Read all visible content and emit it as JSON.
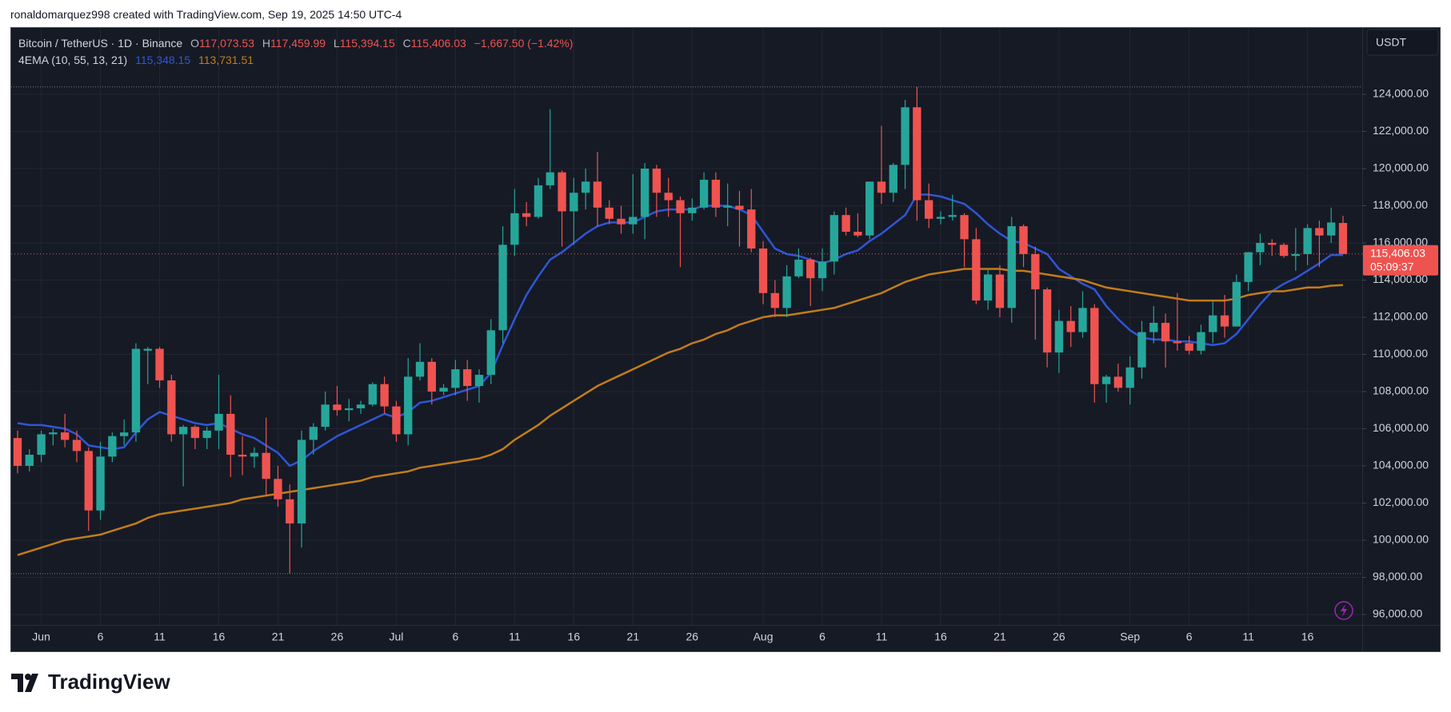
{
  "header": {
    "attribution": "ronaldomarquez998 created with TradingView.com, Sep 19, 2025 14:50 UTC-4",
    "logo": "TradingView"
  },
  "chart_data": {
    "type": "candlestick",
    "symbol": "Bitcoin / TetherUS · 1D · Binance",
    "ohlc_legend": [
      {
        "label": "O",
        "value": "117,073.53"
      },
      {
        "label": "H",
        "value": "117,459.99"
      },
      {
        "label": "L",
        "value": "115,394.15"
      },
      {
        "label": "C",
        "value": "115,406.03"
      }
    ],
    "change": "−1,667.50 (−1.42%)",
    "currency": "USDT",
    "close_label": "115,406.03",
    "countdown": "05:09:37",
    "colors": {
      "up": "#26a69a",
      "down": "#ef5350"
    },
    "grid": true,
    "ylim": [
      95440,
      127570
    ],
    "yticks": [
      {
        "value": 96000,
        "label": "96,000.00"
      },
      {
        "value": 98000,
        "label": "98,000.00"
      },
      {
        "value": 100000,
        "label": "100,000.00"
      },
      {
        "value": 102000,
        "label": "102,000.00"
      },
      {
        "value": 104000,
        "label": "104,000.00"
      },
      {
        "value": 106000,
        "label": "106,000.00"
      },
      {
        "value": 108000,
        "label": "108,000.00"
      },
      {
        "value": 110000,
        "label": "110,000.00"
      },
      {
        "value": 112000,
        "label": "112,000.00"
      },
      {
        "value": 114000,
        "label": "114,000.00"
      },
      {
        "value": 116000,
        "label": "116,000.00"
      },
      {
        "value": 118000,
        "label": "118,000.00"
      },
      {
        "value": 120000,
        "label": "120,000.00"
      },
      {
        "value": 122000,
        "label": "122,000.00"
      },
      {
        "value": 124000,
        "label": "124,000.00"
      }
    ],
    "categories": [
      null,
      null,
      "Jun",
      null,
      null,
      null,
      null,
      "6",
      null,
      null,
      null,
      null,
      "11",
      null,
      null,
      null,
      null,
      "16",
      null,
      null,
      null,
      null,
      "21",
      null,
      null,
      null,
      null,
      "26",
      null,
      null,
      null,
      null,
      "Jul",
      null,
      null,
      null,
      null,
      "6",
      null,
      null,
      null,
      null,
      "11",
      null,
      null,
      null,
      null,
      "16",
      null,
      null,
      null,
      null,
      "21",
      null,
      null,
      null,
      null,
      "26",
      null,
      null,
      null,
      null,
      null,
      "Aug",
      null,
      null,
      null,
      null,
      "6",
      null,
      null,
      null,
      null,
      "11",
      null,
      null,
      null,
      null,
      "16",
      null,
      null,
      null,
      null,
      "21",
      null,
      null,
      null,
      null,
      "26",
      null,
      null,
      null,
      null,
      null,
      "Sep",
      null,
      null,
      null,
      null,
      "6",
      null,
      null,
      null,
      null,
      "11",
      null,
      null,
      null,
      null,
      "16",
      null,
      null,
      null
    ],
    "open": [
      105500,
      104000,
      104600,
      105700,
      105800,
      105400,
      104800,
      101600,
      104500,
      105600,
      105800,
      110200,
      110300,
      108600,
      105700,
      106100,
      105500,
      105900,
      106800,
      104600,
      104500,
      104700,
      103300,
      102200,
      100900,
      105400,
      106100,
      107300,
      107000,
      107100,
      107300,
      108400,
      107200,
      105700,
      108800,
      109600,
      108000,
      108200,
      109200,
      108300,
      108900,
      111300,
      115900,
      117600,
      117400,
      119100,
      119800,
      117700,
      118700,
      119300,
      117900,
      117300,
      117000,
      117400,
      120000,
      118700,
      118300,
      117600,
      117900,
      119400,
      117900,
      118000,
      117800,
      115700,
      113300,
      112500,
      114200,
      115100,
      114100,
      115000,
      117500,
      116600,
      116400,
      119300,
      118700,
      120200,
      123300,
      118300,
      117300,
      117400,
      117500,
      116200,
      112900,
      114300,
      112500,
      116900,
      115400,
      113500,
      110100,
      111800,
      111200,
      112500,
      108400,
      108800,
      108200,
      109300,
      111200,
      111700,
      110700,
      110600,
      110200,
      111200,
      112100,
      111500,
      113900,
      115500,
      116000,
      115900,
      115300,
      115400,
      116800,
      116400,
      117073.53
    ],
    "high": [
      105900,
      104900,
      105900,
      106000,
      106800,
      105900,
      105000,
      105300,
      105800,
      106500,
      110600,
      110400,
      110400,
      108900,
      106200,
      106200,
      106100,
      108900,
      107800,
      105600,
      105000,
      106600,
      104000,
      103000,
      105900,
      106300,
      108000,
      108300,
      107600,
      107500,
      108500,
      108800,
      107500,
      109800,
      110600,
      109800,
      108400,
      109700,
      109700,
      109200,
      111900,
      116900,
      118900,
      118200,
      119500,
      123200,
      119900,
      119500,
      120000,
      120900,
      118300,
      118000,
      119700,
      120300,
      120200,
      119500,
      118500,
      118400,
      119800,
      119800,
      119200,
      118800,
      118900,
      116100,
      114000,
      114800,
      115700,
      115200,
      115700,
      117700,
      117900,
      117600,
      119300,
      122300,
      120300,
      123700,
      124400,
      119200,
      117700,
      118600,
      117600,
      116800,
      114600,
      114800,
      117400,
      117000,
      115800,
      113600,
      112400,
      112600,
      113400,
      112700,
      108900,
      109500,
      109900,
      111800,
      112600,
      112200,
      113300,
      111000,
      111600,
      112900,
      113200,
      114300,
      115500,
      116500,
      116200,
      116000,
      116800,
      117000,
      117200,
      117900,
      117459.99
    ],
    "low": [
      103600,
      103700,
      104200,
      105100,
      105000,
      104200,
      100500,
      101100,
      104200,
      105100,
      105300,
      108400,
      108200,
      105300,
      102900,
      104900,
      104900,
      104900,
      103400,
      103500,
      103900,
      102400,
      101800,
      98200,
      99600,
      104600,
      105900,
      106700,
      106400,
      106800,
      107200,
      106800,
      105300,
      105100,
      108600,
      107300,
      107800,
      107800,
      107500,
      107400,
      108400,
      110600,
      115300,
      116900,
      117300,
      118900,
      115800,
      115900,
      117800,
      116900,
      117000,
      116500,
      116500,
      116200,
      117400,
      117400,
      114700,
      117200,
      117800,
      117400,
      116900,
      115800,
      115500,
      112700,
      112000,
      112000,
      114100,
      112600,
      113400,
      114300,
      116400,
      116300,
      116200,
      118100,
      118200,
      118900,
      117200,
      116800,
      117000,
      117200,
      114700,
      112700,
      112400,
      112000,
      111700,
      114700,
      110800,
      109300,
      109000,
      110400,
      110900,
      107400,
      107400,
      108000,
      107300,
      108700,
      110600,
      109300,
      110200,
      110000,
      110000,
      110600,
      110900,
      111500,
      113400,
      114800,
      115300,
      115200,
      114500,
      114800,
      114700,
      116000,
      115394.15
    ],
    "close": [
      104000,
      104600,
      105700,
      105800,
      105400,
      104800,
      101600,
      104500,
      105600,
      105800,
      110300,
      110300,
      108600,
      105700,
      106100,
      105500,
      105900,
      106800,
      104600,
      104500,
      104700,
      103300,
      102200,
      100900,
      105400,
      106100,
      107300,
      107000,
      107100,
      107300,
      108400,
      107200,
      105700,
      108800,
      109600,
      108000,
      108200,
      109200,
      108300,
      108900,
      111300,
      115900,
      117600,
      117400,
      119100,
      119800,
      117700,
      118700,
      119300,
      117900,
      117300,
      117000,
      117400,
      120000,
      118700,
      118300,
      117600,
      117900,
      119400,
      117900,
      118000,
      117800,
      115700,
      113300,
      112500,
      114200,
      115100,
      114100,
      115000,
      117500,
      116600,
      116400,
      119300,
      118700,
      120200,
      123300,
      118300,
      117300,
      117400,
      117500,
      116200,
      112900,
      114300,
      112500,
      116900,
      115400,
      113500,
      110100,
      111800,
      111200,
      112500,
      108400,
      108800,
      108200,
      109300,
      111200,
      111700,
      110700,
      110600,
      110200,
      111200,
      112100,
      111500,
      113900,
      115500,
      116000,
      115900,
      115300,
      115400,
      116800,
      116400,
      117100,
      115406.03
    ],
    "indicator": {
      "name": "4EMA (10, 55, 13, 21)",
      "lines": [
        {
          "color": "#2f56d6",
          "last_label": "115,348.15",
          "values": [
            106300,
            106200,
            106200,
            106100,
            106000,
            105700,
            105100,
            105000,
            104900,
            105000,
            105800,
            106500,
            106900,
            106700,
            106500,
            106300,
            106200,
            106300,
            106000,
            105700,
            105500,
            105100,
            104700,
            104000,
            104300,
            104800,
            105200,
            105600,
            105900,
            106200,
            106500,
            106800,
            106600,
            106900,
            107400,
            107500,
            107700,
            107900,
            108100,
            108300,
            109000,
            110500,
            111900,
            113200,
            114200,
            115100,
            115500,
            116000,
            116500,
            116900,
            117100,
            117100,
            117100,
            117400,
            117700,
            117800,
            117800,
            117800,
            118000,
            118000,
            118000,
            117800,
            117500,
            116600,
            115700,
            115400,
            115300,
            115100,
            114900,
            115100,
            115400,
            115600,
            116100,
            116500,
            117000,
            117500,
            118600,
            118600,
            118500,
            118300,
            118100,
            117600,
            117000,
            116500,
            116100,
            116000,
            115700,
            115400,
            114600,
            114200,
            113800,
            113500,
            112600,
            111900,
            111300,
            110900,
            110800,
            110800,
            110700,
            110700,
            110600,
            110500,
            110600,
            111100,
            111900,
            112700,
            113400,
            113800,
            114100,
            114500,
            114900,
            115350,
            115348.15
          ]
        },
        {
          "color": "#c27d18",
          "last_label": "113,731.51",
          "values": [
            99200,
            99400,
            99600,
            99800,
            100000,
            100100,
            100200,
            100300,
            100500,
            100700,
            100900,
            101200,
            101400,
            101500,
            101600,
            101700,
            101800,
            101900,
            102000,
            102200,
            102300,
            102400,
            102500,
            102600,
            102700,
            102800,
            102900,
            103000,
            103100,
            103200,
            103400,
            103500,
            103600,
            103700,
            103900,
            104000,
            104100,
            104200,
            104300,
            104400,
            104600,
            104900,
            105400,
            105800,
            106200,
            106700,
            107100,
            107500,
            107900,
            108300,
            108600,
            108900,
            109200,
            109500,
            109800,
            110100,
            110300,
            110600,
            110800,
            111100,
            111300,
            111600,
            111800,
            112000,
            112100,
            112100,
            112200,
            112300,
            112400,
            112500,
            112700,
            112900,
            113100,
            113300,
            113600,
            113900,
            114100,
            114300,
            114400,
            114500,
            114600,
            114600,
            114600,
            114600,
            114500,
            114500,
            114400,
            114300,
            114200,
            114100,
            114000,
            113800,
            113600,
            113500,
            113400,
            113300,
            113200,
            113100,
            113000,
            112900,
            112900,
            112900,
            112900,
            113000,
            113200,
            113300,
            113400,
            113400,
            113500,
            113600,
            113600,
            113700,
            113731.51
          ]
        }
      ]
    }
  }
}
